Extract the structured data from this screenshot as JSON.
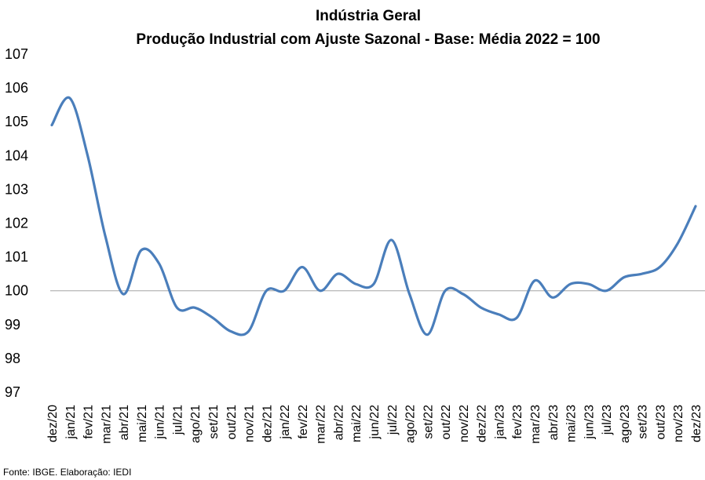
{
  "chart_data": {
    "type": "line",
    "title": "Indústria Geral",
    "subtitle": "Produção Industrial com Ajuste Sazonal - Base: Média 2022 = 100",
    "xlabel": "",
    "ylabel": "",
    "ylim": [
      97,
      107
    ],
    "y_ticks": [
      "97",
      "98",
      "99",
      "100",
      "101",
      "102",
      "103",
      "104",
      "105",
      "106",
      "107"
    ],
    "reference_line": 100,
    "grid": false,
    "legend": "none",
    "categories": [
      "dez/20",
      "jan/21",
      "fev/21",
      "mar/21",
      "abr/21",
      "mai/21",
      "jun/21",
      "jul/21",
      "ago/21",
      "set/21",
      "out/21",
      "nov/21",
      "dez/21",
      "jan/22",
      "fev/22",
      "mar/22",
      "abr/22",
      "mai/22",
      "jun/22",
      "jul/22",
      "ago/22",
      "set/22",
      "out/22",
      "nov/22",
      "dez/22",
      "jan/23",
      "fev/23",
      "mar/23",
      "abr/23",
      "mai/23",
      "jun/23",
      "jul/23",
      "ago/23",
      "set/23",
      "out/23",
      "nov/23",
      "dez/23"
    ],
    "series": [
      {
        "values": [
          104.9,
          105.7,
          104.0,
          101.6,
          99.9,
          101.2,
          100.8,
          99.5,
          99.5,
          99.2,
          98.8,
          98.8,
          100.0,
          100.0,
          100.7,
          100.0,
          100.5,
          100.2,
          100.2,
          101.5,
          99.9,
          98.7,
          100.0,
          99.9,
          99.5,
          99.3,
          99.2,
          100.3,
          99.8,
          100.2,
          100.2,
          100.0,
          100.4,
          100.5,
          100.7,
          101.4,
          102.5
        ],
        "color": "#4a7ebb"
      }
    ],
    "source": "Fonte: IBGE. Elaboração: IEDI"
  }
}
